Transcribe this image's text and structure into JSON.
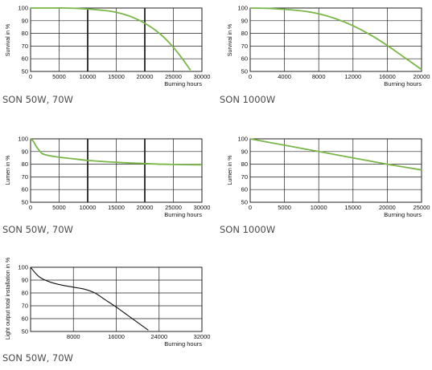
{
  "colors": {
    "green": "#7ab648",
    "black": "#111111",
    "grid": "#222222"
  },
  "chart_data": [
    {
      "type": "line",
      "caption": "SON 50W, 70W",
      "ylabel": "Survival in %",
      "xlabel": "Burning hours",
      "xlim": [
        0,
        30000
      ],
      "ylim": [
        50,
        100
      ],
      "xticks": [
        0,
        5000,
        10000,
        15000,
        20000,
        25000,
        30000
      ],
      "yticks": [
        50,
        60,
        70,
        80,
        90,
        100
      ],
      "emphasized_gridlines_x": [
        10000,
        20000
      ],
      "grid": true,
      "series_color": "green",
      "x": [
        0,
        3000,
        6000,
        9000,
        12000,
        14000,
        16000,
        18000,
        20000,
        22000,
        24000,
        26000,
        28000
      ],
      "y": [
        100,
        100,
        100,
        99.5,
        98.5,
        97.5,
        95.5,
        92.5,
        88,
        82,
        74,
        63.5,
        51
      ]
    },
    {
      "type": "line",
      "caption": "SON 1000W",
      "ylabel": "Survival in %",
      "xlabel": "Burning hours",
      "xlim": [
        0,
        20000
      ],
      "ylim": [
        50,
        100
      ],
      "xticks": [
        0,
        4000,
        8000,
        12000,
        16000,
        20000
      ],
      "yticks": [
        50,
        60,
        70,
        80,
        90,
        100
      ],
      "emphasized_gridlines_x": [],
      "grid": true,
      "series_color": "green",
      "x": [
        0,
        2000,
        4000,
        6000,
        8000,
        10000,
        12000,
        14000,
        16000,
        18000,
        20000
      ],
      "y": [
        100,
        99.8,
        99,
        97.8,
        95.5,
        91.5,
        86,
        79,
        70.5,
        61,
        51.5
      ]
    },
    {
      "type": "line",
      "caption": "SON 50W, 70W",
      "ylabel": "Lumen in %",
      "xlabel": "Burning hours",
      "xlim": [
        0,
        30000
      ],
      "ylim": [
        50,
        100
      ],
      "xticks": [
        0,
        5000,
        10000,
        15000,
        20000,
        25000,
        30000
      ],
      "yticks": [
        50,
        60,
        70,
        80,
        90,
        100
      ],
      "emphasized_gridlines_x": [
        10000,
        20000
      ],
      "grid": true,
      "series_color": "green",
      "x": [
        0,
        500,
        1000,
        1500,
        2000,
        3000,
        5000,
        8000,
        10000,
        15000,
        20000,
        25000,
        30000
      ],
      "y": [
        100,
        98,
        94,
        91,
        88.5,
        87,
        85.5,
        84,
        83,
        81.5,
        80.5,
        79.8,
        79.5
      ]
    },
    {
      "type": "line",
      "caption": "SON 1000W",
      "ylabel": "Lumen in %",
      "xlabel": "Burning hours",
      "xlim": [
        0,
        25000
      ],
      "ylim": [
        50,
        100
      ],
      "xticks": [
        0,
        5000,
        10000,
        15000,
        20000,
        25000
      ],
      "yticks": [
        50,
        60,
        70,
        80,
        90,
        100
      ],
      "emphasized_gridlines_x": [],
      "grid": true,
      "series_color": "green",
      "x": [
        0,
        5000,
        10000,
        15000,
        20000,
        25000
      ],
      "y": [
        100,
        95,
        90,
        85,
        80,
        75.5
      ]
    },
    {
      "type": "line",
      "caption": "SON 50W, 70W",
      "ylabel": "Light output total installation in %",
      "xlabel": "Burning hours",
      "xlim": [
        0,
        32000
      ],
      "ylim": [
        50,
        100
      ],
      "xticks": [
        0,
        8000,
        16000,
        24000,
        32000
      ],
      "yticks": [
        50,
        60,
        70,
        80,
        90,
        100
      ],
      "xticklabels_shown": [
        "",
        "8000",
        "16000",
        "24000",
        "32000"
      ],
      "emphasized_gridlines_x": [],
      "grid": true,
      "series_color": "black",
      "x": [
        0,
        1000,
        2000,
        4000,
        6000,
        8000,
        10000,
        12000,
        14000,
        16000,
        18000,
        20000,
        22000
      ],
      "y": [
        100,
        95,
        91.5,
        88,
        86,
        84.5,
        83,
        80,
        74.5,
        69,
        63,
        57,
        51
      ]
    }
  ]
}
